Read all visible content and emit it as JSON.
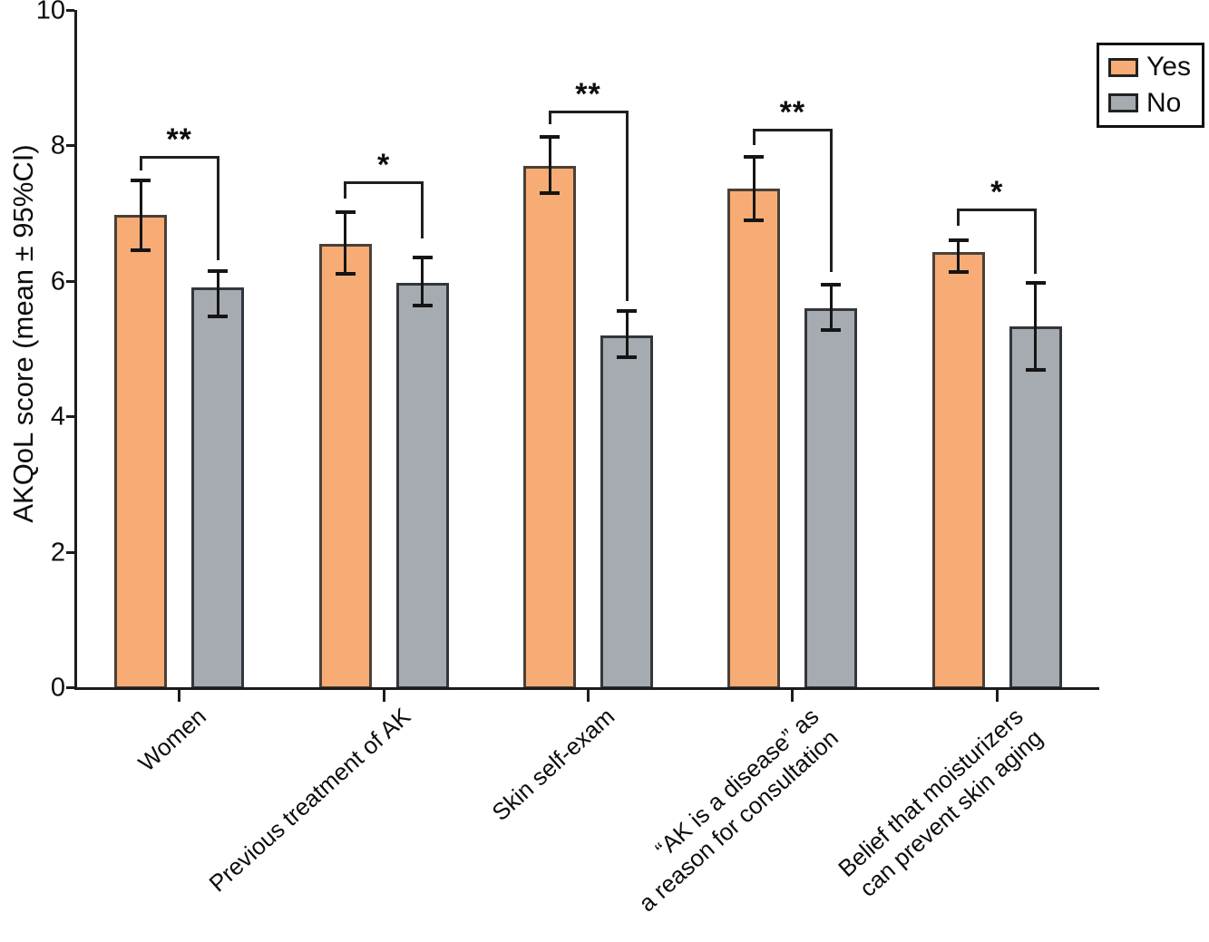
{
  "chart_data": {
    "type": "bar",
    "title": "",
    "ylabel": "AKQoL score (mean ± 95%CI)",
    "xlabel": "",
    "ylim": [
      0,
      10
    ],
    "yticks": [
      0,
      2,
      4,
      6,
      8,
      10
    ],
    "grid": false,
    "legend_position": "top-right",
    "bar_orientation": "vertical",
    "error_bars": "95% confidence interval",
    "categories": [
      "Women",
      "Previous treatment of AK",
      "Skin self-exam",
      "“AK is a disease” as\na reason for consultation",
      "Belief that moisturizers\ncan prevent skin aging"
    ],
    "series": [
      {
        "name": "Yes",
        "color": "#f6ac74",
        "border_color": "#4a4038",
        "means": [
          6.97,
          6.55,
          7.7,
          7.36,
          6.43
        ],
        "ci_low": [
          6.45,
          6.1,
          7.29,
          6.89,
          6.13
        ],
        "ci_high": [
          7.48,
          7.01,
          8.12,
          7.83,
          6.6
        ]
      },
      {
        "name": "No",
        "color": "#a6abb2",
        "border_color": "#33363c",
        "means": [
          5.9,
          5.97,
          5.2,
          5.6,
          5.33
        ],
        "ci_low": [
          5.48,
          5.63,
          4.87,
          5.27,
          4.68
        ],
        "ci_high": [
          6.14,
          6.35,
          5.55,
          5.95,
          5.97
        ]
      }
    ],
    "significance": [
      {
        "label": "**",
        "line_y": 7.85,
        "left_leg_bottom": 7.63,
        "right_leg_bottom": 6.3
      },
      {
        "label": "*",
        "line_y": 7.47,
        "left_leg_bottom": 7.22,
        "right_leg_bottom": 6.62
      },
      {
        "label": "**",
        "line_y": 8.51,
        "left_leg_bottom": 8.31,
        "right_leg_bottom": 5.7
      },
      {
        "label": "**",
        "line_y": 8.24,
        "left_leg_bottom": 8.0,
        "right_leg_bottom": 6.13
      },
      {
        "label": "*",
        "line_y": 7.07,
        "left_leg_bottom": 6.82,
        "right_leg_bottom": 6.1
      }
    ]
  },
  "axis": {
    "ytick_labels": [
      "0",
      "2",
      "4",
      "6",
      "8",
      "10"
    ]
  },
  "legend": {
    "items": [
      {
        "label": "Yes"
      },
      {
        "label": "No"
      }
    ]
  }
}
